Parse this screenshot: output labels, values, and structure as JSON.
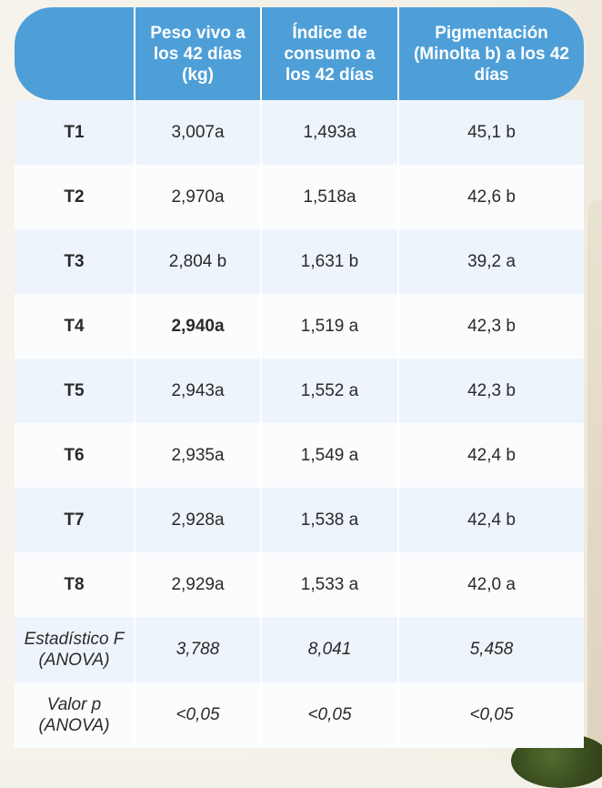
{
  "table": {
    "headers": [
      "",
      "Peso vivo a los 42 días (kg)",
      "Índice de consumo a los 42 días",
      "Pigmentación (Minolta b) a los 42 días"
    ],
    "rows": [
      {
        "label": "T1",
        "peso": "3,007a",
        "indice": "1,493a",
        "pigmentacion": "45,1 b"
      },
      {
        "label": "T2",
        "peso": "2,970a",
        "indice": "1,518a",
        "pigmentacion": "42,6 b"
      },
      {
        "label": "T3",
        "peso": "2,804 b",
        "indice": "1,631 b",
        "pigmentacion": "39,2 a"
      },
      {
        "label": "T4",
        "peso": "2,940a",
        "indice": "1,519 a",
        "pigmentacion": "42,3 b"
      },
      {
        "label": "T5",
        "peso": "2,943a",
        "indice": "1,552 a",
        "pigmentacion": "42,3 b"
      },
      {
        "label": "T6",
        "peso": "2,935a",
        "indice": "1,549 a",
        "pigmentacion": "42,4 b"
      },
      {
        "label": "T7",
        "peso": "2,928a",
        "indice": "1,538 a",
        "pigmentacion": "42,4 b"
      },
      {
        "label": "T8",
        "peso": "2,929a",
        "indice": "1,533 a",
        "pigmentacion": "42,0 a"
      }
    ],
    "stats": [
      {
        "label": "Estadístico F (ANOVA)",
        "peso": "3,788",
        "indice": "8,041",
        "pigmentacion": "5,458"
      },
      {
        "label": "Valor p (ANOVA)",
        "peso": "<0,05",
        "indice": "<0,05",
        "pigmentacion": "<0,05"
      }
    ]
  }
}
